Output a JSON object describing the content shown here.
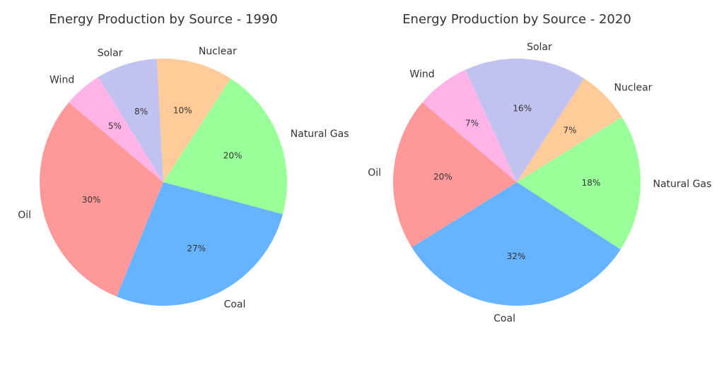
{
  "chart_data": [
    {
      "type": "pie",
      "title": "Energy Production by Source - 1990",
      "start_angle_deg": -15,
      "direction": "counterclockwise",
      "categories": [
        "Natural Gas",
        "Nuclear",
        "Solar",
        "Wind",
        "Oil",
        "Coal"
      ],
      "values": [
        20,
        10,
        8,
        5,
        30,
        27
      ],
      "value_labels": [
        "20%",
        "10%",
        "8%",
        "5%",
        "30%",
        "27%"
      ],
      "colors": [
        "#99ff99",
        "#ffcc99",
        "#c2c2f0",
        "#ffb3e6",
        "#ff9999",
        "#66b3ff"
      ]
    },
    {
      "type": "pie",
      "title": "Energy Production by Source - 2020",
      "start_angle_deg": -33,
      "direction": "counterclockwise",
      "categories": [
        "Natural Gas",
        "Nuclear",
        "Solar",
        "Wind",
        "Oil",
        "Coal"
      ],
      "values": [
        18,
        7,
        16,
        7,
        20,
        32
      ],
      "value_labels": [
        "18%",
        "7%",
        "16%",
        "7%",
        "20%",
        "32%"
      ],
      "colors": [
        "#99ff99",
        "#ffcc99",
        "#c2c2f0",
        "#ffb3e6",
        "#ff9999",
        "#66b3ff"
      ]
    }
  ]
}
